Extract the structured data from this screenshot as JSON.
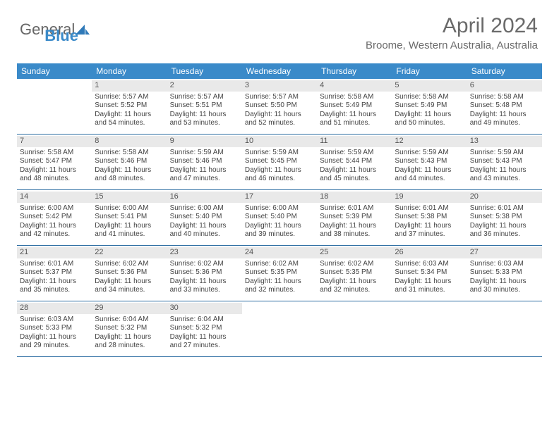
{
  "brand": {
    "part1": "General",
    "part2": "Blue"
  },
  "header": {
    "month_year": "April 2024",
    "location": "Broome, Western Australia, Australia"
  },
  "colors": {
    "header_bg": "#3a8ac9",
    "text": "#444444",
    "shade": "#e9e9e9",
    "rule": "#2f6fa3"
  },
  "daynames": [
    "Sunday",
    "Monday",
    "Tuesday",
    "Wednesday",
    "Thursday",
    "Friday",
    "Saturday"
  ],
  "weeks": [
    [
      {
        "date": "",
        "sunrise": "",
        "sunset": "",
        "daylight": ""
      },
      {
        "date": "1",
        "sunrise": "Sunrise: 5:57 AM",
        "sunset": "Sunset: 5:52 PM",
        "daylight": "Daylight: 11 hours and 54 minutes."
      },
      {
        "date": "2",
        "sunrise": "Sunrise: 5:57 AM",
        "sunset": "Sunset: 5:51 PM",
        "daylight": "Daylight: 11 hours and 53 minutes."
      },
      {
        "date": "3",
        "sunrise": "Sunrise: 5:57 AM",
        "sunset": "Sunset: 5:50 PM",
        "daylight": "Daylight: 11 hours and 52 minutes."
      },
      {
        "date": "4",
        "sunrise": "Sunrise: 5:58 AM",
        "sunset": "Sunset: 5:49 PM",
        "daylight": "Daylight: 11 hours and 51 minutes."
      },
      {
        "date": "5",
        "sunrise": "Sunrise: 5:58 AM",
        "sunset": "Sunset: 5:49 PM",
        "daylight": "Daylight: 11 hours and 50 minutes."
      },
      {
        "date": "6",
        "sunrise": "Sunrise: 5:58 AM",
        "sunset": "Sunset: 5:48 PM",
        "daylight": "Daylight: 11 hours and 49 minutes."
      }
    ],
    [
      {
        "date": "7",
        "sunrise": "Sunrise: 5:58 AM",
        "sunset": "Sunset: 5:47 PM",
        "daylight": "Daylight: 11 hours and 48 minutes."
      },
      {
        "date": "8",
        "sunrise": "Sunrise: 5:58 AM",
        "sunset": "Sunset: 5:46 PM",
        "daylight": "Daylight: 11 hours and 48 minutes."
      },
      {
        "date": "9",
        "sunrise": "Sunrise: 5:59 AM",
        "sunset": "Sunset: 5:46 PM",
        "daylight": "Daylight: 11 hours and 47 minutes."
      },
      {
        "date": "10",
        "sunrise": "Sunrise: 5:59 AM",
        "sunset": "Sunset: 5:45 PM",
        "daylight": "Daylight: 11 hours and 46 minutes."
      },
      {
        "date": "11",
        "sunrise": "Sunrise: 5:59 AM",
        "sunset": "Sunset: 5:44 PM",
        "daylight": "Daylight: 11 hours and 45 minutes."
      },
      {
        "date": "12",
        "sunrise": "Sunrise: 5:59 AM",
        "sunset": "Sunset: 5:43 PM",
        "daylight": "Daylight: 11 hours and 44 minutes."
      },
      {
        "date": "13",
        "sunrise": "Sunrise: 5:59 AM",
        "sunset": "Sunset: 5:43 PM",
        "daylight": "Daylight: 11 hours and 43 minutes."
      }
    ],
    [
      {
        "date": "14",
        "sunrise": "Sunrise: 6:00 AM",
        "sunset": "Sunset: 5:42 PM",
        "daylight": "Daylight: 11 hours and 42 minutes."
      },
      {
        "date": "15",
        "sunrise": "Sunrise: 6:00 AM",
        "sunset": "Sunset: 5:41 PM",
        "daylight": "Daylight: 11 hours and 41 minutes."
      },
      {
        "date": "16",
        "sunrise": "Sunrise: 6:00 AM",
        "sunset": "Sunset: 5:40 PM",
        "daylight": "Daylight: 11 hours and 40 minutes."
      },
      {
        "date": "17",
        "sunrise": "Sunrise: 6:00 AM",
        "sunset": "Sunset: 5:40 PM",
        "daylight": "Daylight: 11 hours and 39 minutes."
      },
      {
        "date": "18",
        "sunrise": "Sunrise: 6:01 AM",
        "sunset": "Sunset: 5:39 PM",
        "daylight": "Daylight: 11 hours and 38 minutes."
      },
      {
        "date": "19",
        "sunrise": "Sunrise: 6:01 AM",
        "sunset": "Sunset: 5:38 PM",
        "daylight": "Daylight: 11 hours and 37 minutes."
      },
      {
        "date": "20",
        "sunrise": "Sunrise: 6:01 AM",
        "sunset": "Sunset: 5:38 PM",
        "daylight": "Daylight: 11 hours and 36 minutes."
      }
    ],
    [
      {
        "date": "21",
        "sunrise": "Sunrise: 6:01 AM",
        "sunset": "Sunset: 5:37 PM",
        "daylight": "Daylight: 11 hours and 35 minutes."
      },
      {
        "date": "22",
        "sunrise": "Sunrise: 6:02 AM",
        "sunset": "Sunset: 5:36 PM",
        "daylight": "Daylight: 11 hours and 34 minutes."
      },
      {
        "date": "23",
        "sunrise": "Sunrise: 6:02 AM",
        "sunset": "Sunset: 5:36 PM",
        "daylight": "Daylight: 11 hours and 33 minutes."
      },
      {
        "date": "24",
        "sunrise": "Sunrise: 6:02 AM",
        "sunset": "Sunset: 5:35 PM",
        "daylight": "Daylight: 11 hours and 32 minutes."
      },
      {
        "date": "25",
        "sunrise": "Sunrise: 6:02 AM",
        "sunset": "Sunset: 5:35 PM",
        "daylight": "Daylight: 11 hours and 32 minutes."
      },
      {
        "date": "26",
        "sunrise": "Sunrise: 6:03 AM",
        "sunset": "Sunset: 5:34 PM",
        "daylight": "Daylight: 11 hours and 31 minutes."
      },
      {
        "date": "27",
        "sunrise": "Sunrise: 6:03 AM",
        "sunset": "Sunset: 5:33 PM",
        "daylight": "Daylight: 11 hours and 30 minutes."
      }
    ],
    [
      {
        "date": "28",
        "sunrise": "Sunrise: 6:03 AM",
        "sunset": "Sunset: 5:33 PM",
        "daylight": "Daylight: 11 hours and 29 minutes."
      },
      {
        "date": "29",
        "sunrise": "Sunrise: 6:04 AM",
        "sunset": "Sunset: 5:32 PM",
        "daylight": "Daylight: 11 hours and 28 minutes."
      },
      {
        "date": "30",
        "sunrise": "Sunrise: 6:04 AM",
        "sunset": "Sunset: 5:32 PM",
        "daylight": "Daylight: 11 hours and 27 minutes."
      },
      {
        "date": "",
        "sunrise": "",
        "sunset": "",
        "daylight": ""
      },
      {
        "date": "",
        "sunrise": "",
        "sunset": "",
        "daylight": ""
      },
      {
        "date": "",
        "sunrise": "",
        "sunset": "",
        "daylight": ""
      },
      {
        "date": "",
        "sunrise": "",
        "sunset": "",
        "daylight": ""
      }
    ]
  ]
}
